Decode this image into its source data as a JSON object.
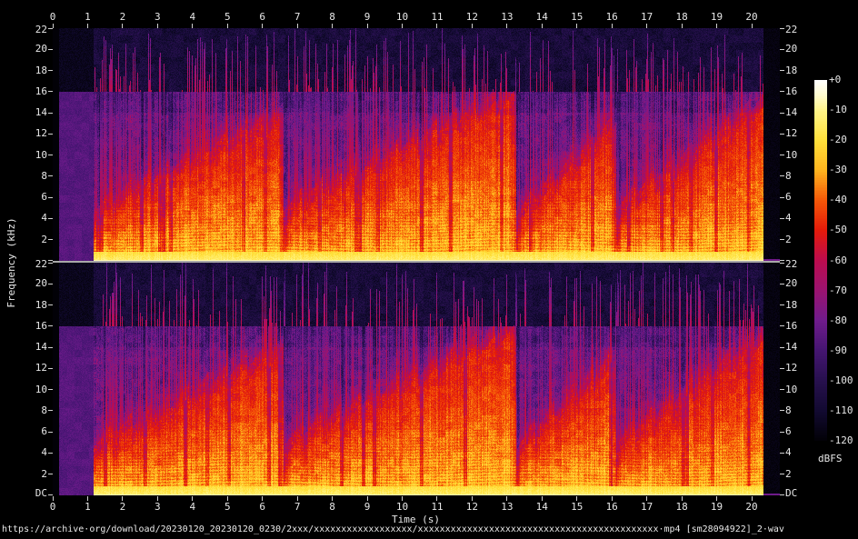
{
  "app": {
    "background": "#000000",
    "text_color": "#e8e8e8",
    "tick_color": "#cfcfcf",
    "divider_color": "#a8a8a8"
  },
  "chart_data": {
    "type": "heatmap",
    "subtype": "stereo-audio-spectrogram",
    "channels": [
      "channel-1-top",
      "channel-2-bottom"
    ],
    "title": "https://archive·org/download/20230120_20230120_0230/2xxx/xxxxxxxxxxxxxxxxxx/xxxxxxxxxxxxxxxxxxxxxxxxxxxxxxxxxxxxxxxxxxxx·mp4 [sm28094922]_2·wav",
    "xlabel": "Time (s)",
    "ylabel": "Frequency (kHz)",
    "x": {
      "ticks": [
        "0",
        "1",
        "2",
        "3",
        "4",
        "5",
        "6",
        "7",
        "8",
        "9",
        "10",
        "11",
        "12",
        "13",
        "14",
        "15",
        "16",
        "17",
        "18",
        "19",
        "20"
      ],
      "range_s": [
        0,
        20.8
      ]
    },
    "y": {
      "ticks": [
        "22",
        "20",
        "18",
        "16",
        "14",
        "12",
        "10",
        "8",
        "6",
        "4",
        "2",
        "DC"
      ],
      "range_khz": [
        0,
        22
      ]
    },
    "colorbar": {
      "label": "dBFS",
      "ticks": [
        "+0",
        "-10",
        "-20",
        "-30",
        "-40",
        "-50",
        "-60",
        "-70",
        "-80",
        "-90",
        "-100",
        "-110",
        "-120"
      ],
      "range_db": [
        0,
        -120
      ],
      "palette": [
        {
          "db": -120,
          "color": "#020107"
        },
        {
          "db": -110,
          "color": "#120a31"
        },
        {
          "db": -100,
          "color": "#27104e"
        },
        {
          "db": -90,
          "color": "#451571"
        },
        {
          "db": -80,
          "color": "#6f1b8c"
        },
        {
          "db": -70,
          "color": "#9b1370"
        },
        {
          "db": -60,
          "color": "#bc0c4e"
        },
        {
          "db": -50,
          "color": "#e31a0a"
        },
        {
          "db": -40,
          "color": "#f55708"
        },
        {
          "db": -30,
          "color": "#ffb41e"
        },
        {
          "db": -20,
          "color": "#ffe03a"
        },
        {
          "db": -10,
          "color": "#fff489"
        },
        {
          "db": -5,
          "color": "#fffbce"
        },
        {
          "db": 0,
          "color": "#ffffff"
        }
      ]
    },
    "audio": {
      "lead_in_silence_s": [
        0,
        1.15
      ],
      "audio_end_s": 20.32,
      "phrases_s": [
        [
          1.15,
          6.6
        ],
        [
          6.6,
          13.25
        ],
        [
          13.25,
          16.1
        ],
        [
          16.1,
          20.32
        ]
      ]
    }
  }
}
